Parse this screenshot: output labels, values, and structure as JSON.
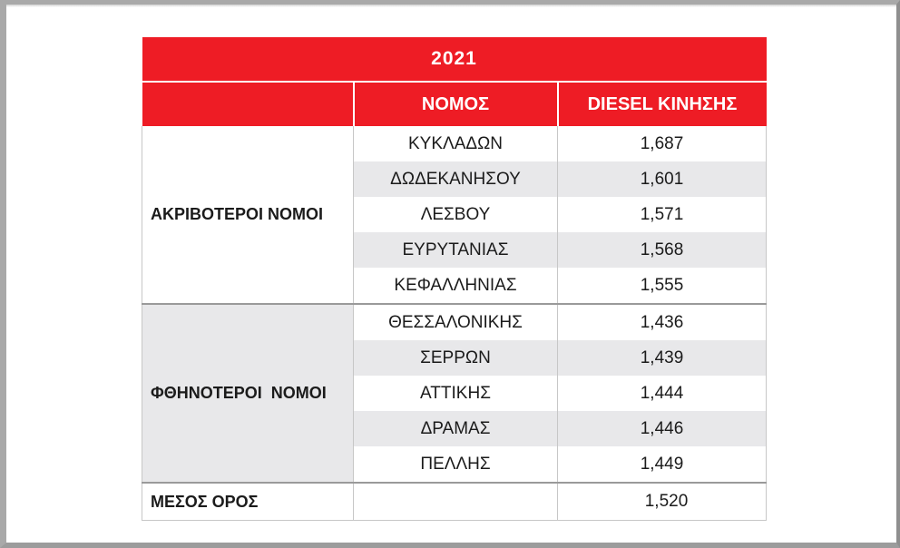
{
  "table": {
    "year": "2021",
    "headers": {
      "prefecture": "ΝΟΜΟΣ",
      "diesel": "DIESEL ΚΙΝΗΣΗΣ"
    },
    "groups": [
      {
        "label": "ΑΚΡΙΒΟΤΕΡΟΙ ΝΟΜΟΙ",
        "rows": [
          {
            "name": "ΚΥΚΛΑΔΩΝ",
            "value": "1,687"
          },
          {
            "name": "ΔΩΔΕΚΑΝΗΣΟΥ",
            "value": "1,601"
          },
          {
            "name": "ΛΕΣΒΟΥ",
            "value": "1,571"
          },
          {
            "name": "ΕΥΡΥΤΑΝΙΑΣ",
            "value": "1,568"
          },
          {
            "name": "ΚΕΦΑΛΛΗΝΙΑΣ",
            "value": "1,555"
          }
        ]
      },
      {
        "label": "ΦΘΗΝΟΤΕΡΟΙ  ΝΟΜΟΙ",
        "rows": [
          {
            "name": "ΘΕΣΣΑΛΟΝΙΚΗΣ",
            "value": "1,436"
          },
          {
            "name": "ΣΕΡΡΩΝ",
            "value": "1,439"
          },
          {
            "name": "ΑΤΤΙΚΗΣ",
            "value": "1,444"
          },
          {
            "name": "ΔΡΑΜΑΣ",
            "value": "1,446"
          },
          {
            "name": "ΠΕΛΛΗΣ",
            "value": "1,449"
          }
        ]
      }
    ],
    "average": {
      "label": "ΜΕΣΟΣ ΟΡΟΣ",
      "value": "1,520"
    }
  },
  "colors": {
    "header_red": "#ee1c25",
    "row_shade": "#e8e8ea"
  }
}
